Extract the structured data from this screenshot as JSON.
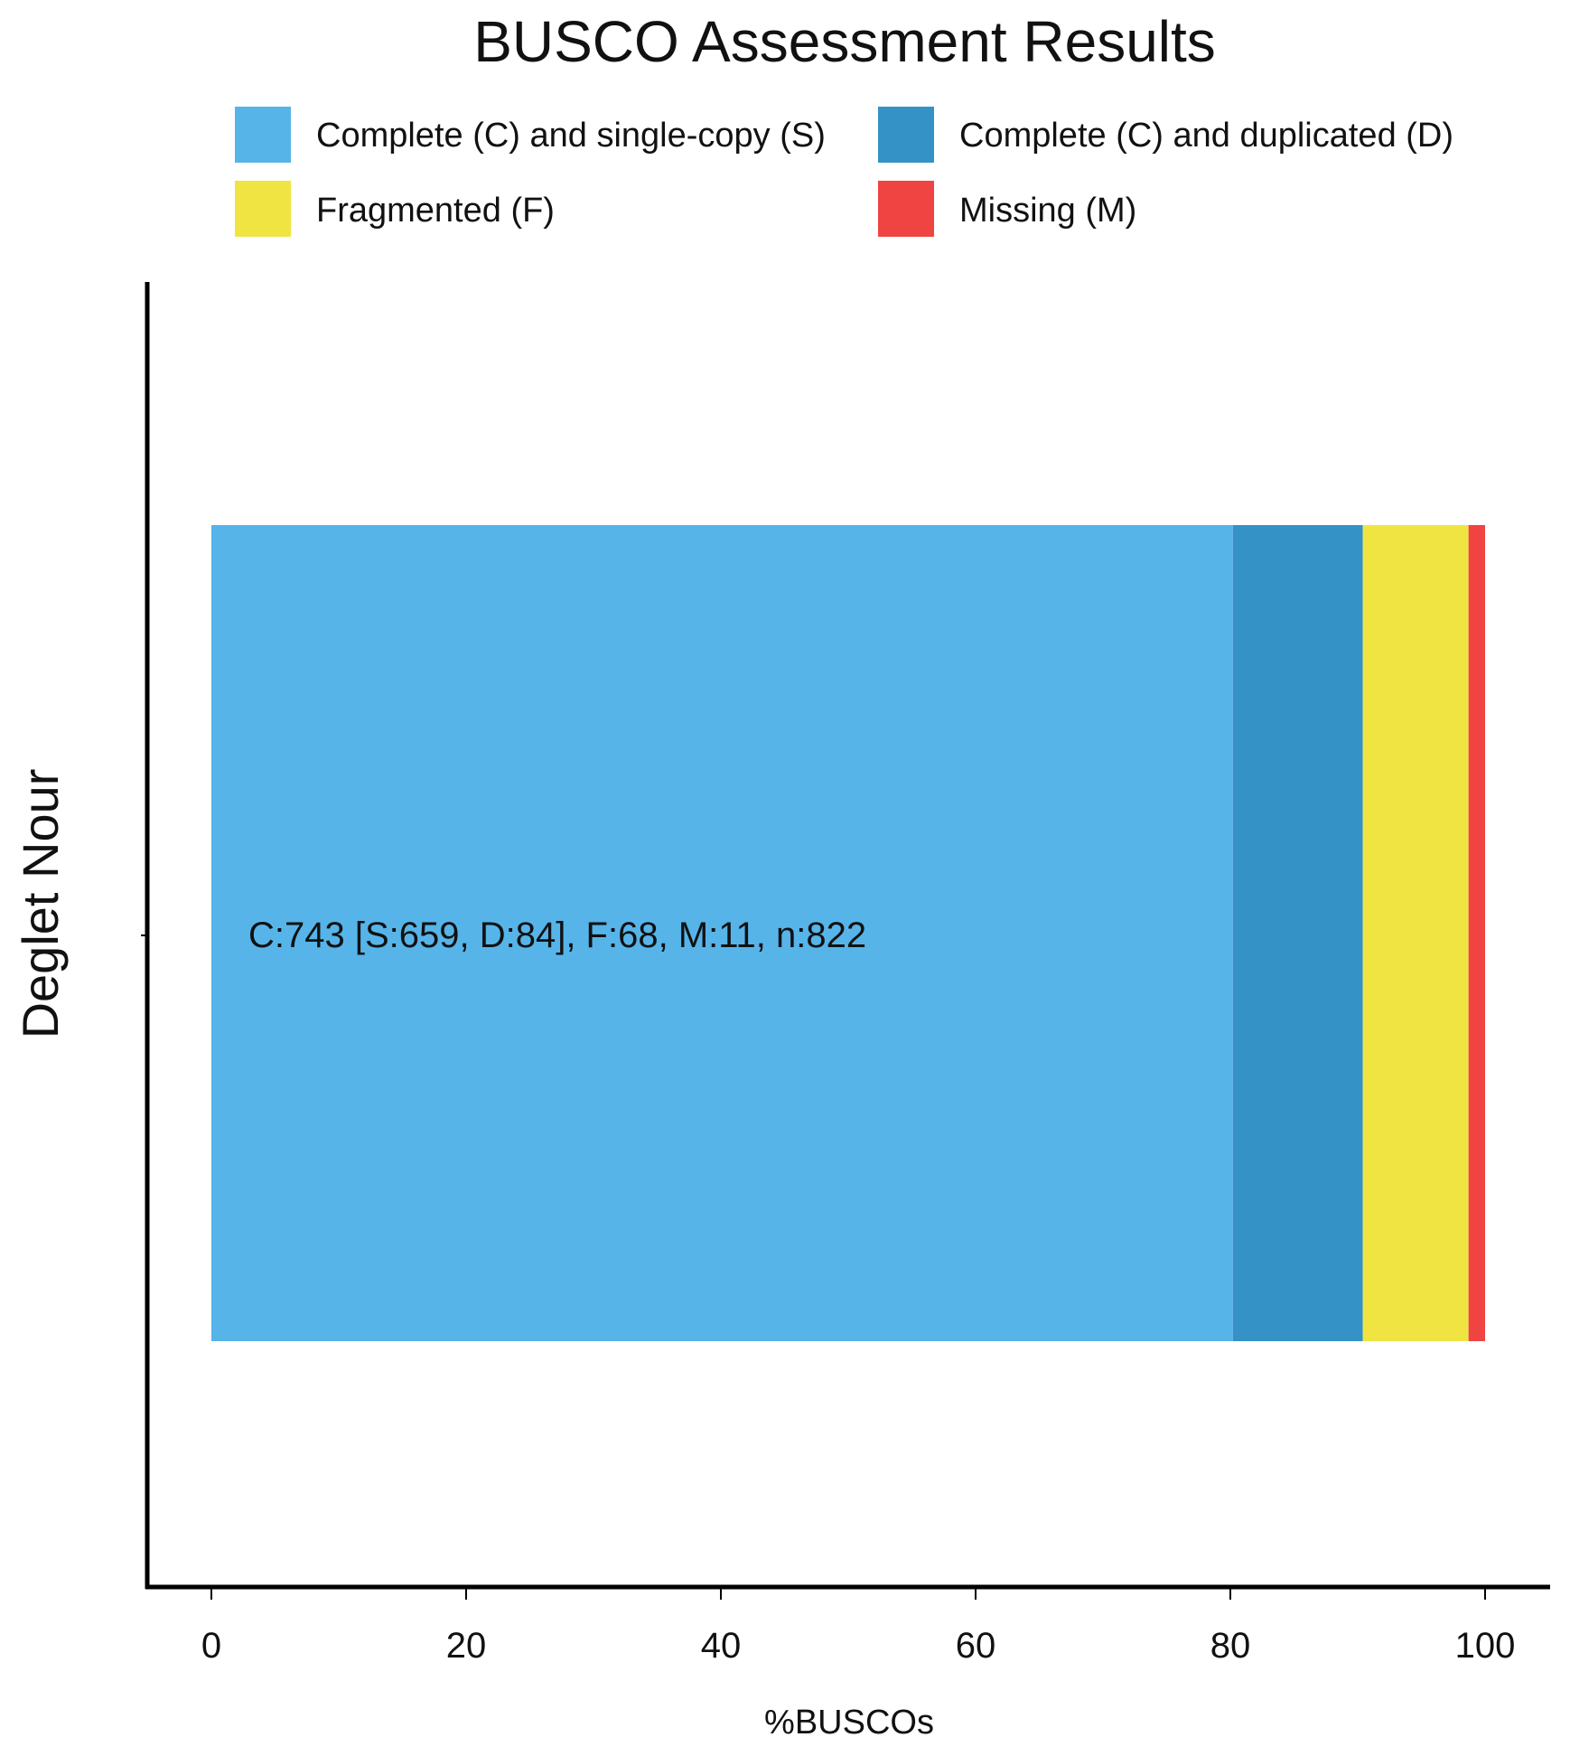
{
  "chart_data": {
    "type": "bar",
    "orientation": "horizontal",
    "stacked": true,
    "title": "BUSCO Assessment Results",
    "xlabel": "%BUSCOs",
    "ylabel": "Deglet Nour",
    "xlim": [
      0,
      100
    ],
    "xticks": [
      0,
      20,
      40,
      60,
      80,
      100
    ],
    "categories": [
      "Deglet Nour"
    ],
    "grid": false,
    "legend_position": "top",
    "series": [
      {
        "name": "Complete (C) and single-copy (S)",
        "values": [
          80.2
        ],
        "color": "#56B4E9"
      },
      {
        "name": "Complete (C) and duplicated (D)",
        "values": [
          10.2
        ],
        "color": "#3492C7"
      },
      {
        "name": "Fragmented (F)",
        "values": [
          8.3
        ],
        "color": "#F0E442"
      },
      {
        "name": "Missing (M)",
        "values": [
          1.3
        ],
        "color": "#F04442"
      }
    ],
    "annotation": "C:743 [S:659, D:84], F:68, M:11, n:822"
  }
}
